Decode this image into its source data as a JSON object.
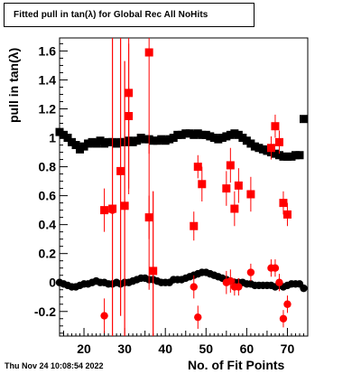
{
  "title": "Fitted pull in tan(λ) for Global Rec All NoHits",
  "footer": "Thu Nov 24 10:08:54 2022",
  "chart_data": {
    "type": "scatter",
    "title": "Fitted pull in tan(λ) for Global Rec All NoHits",
    "xlabel": "No. of Fit Points",
    "ylabel": "pull in tan(λ)",
    "xlim": [
      14,
      75
    ],
    "ylim": [
      -0.37,
      1.69
    ],
    "xticks": [
      20,
      30,
      40,
      50,
      60,
      70
    ],
    "yticks": [
      -0.2,
      0,
      0.2,
      0.4,
      0.6,
      0.8,
      1,
      1.2,
      1.4,
      1.6
    ],
    "ytick_labels": [
      "-0.2",
      "0",
      "0.2",
      "0.4",
      "0.6",
      "0.8",
      "1",
      "1.2",
      "1.4",
      "1.6"
    ],
    "series": [
      {
        "marker": "square",
        "color": "#000000",
        "points": [
          [
            14,
            1.04
          ],
          [
            15,
            1.02
          ],
          [
            16,
            1.0
          ],
          [
            17,
            0.97
          ],
          [
            18,
            0.95
          ],
          [
            19,
            0.92
          ],
          [
            20,
            0.94
          ],
          [
            21,
            0.96
          ],
          [
            22,
            0.97
          ],
          [
            23,
            0.96
          ],
          [
            24,
            0.98
          ],
          [
            25,
            0.96
          ],
          [
            26,
            0.97
          ],
          [
            27,
            0.97
          ],
          [
            28,
            0.96
          ],
          [
            29,
            0.97
          ],
          [
            30,
            0.97
          ],
          [
            31,
            0.98
          ],
          [
            32,
            0.97
          ],
          [
            33,
            0.98
          ],
          [
            34,
            1.0
          ],
          [
            35,
            0.99
          ],
          [
            36,
            0.99
          ],
          [
            37,
            0.98
          ],
          [
            38,
            0.98
          ],
          [
            39,
            0.99
          ],
          [
            40,
            0.98
          ],
          [
            41,
            0.99
          ],
          [
            42,
            1.0
          ],
          [
            43,
            1.02
          ],
          [
            44,
            1.02
          ],
          [
            45,
            1.03
          ],
          [
            46,
            1.03
          ],
          [
            47,
            1.02
          ],
          [
            48,
            1.03
          ],
          [
            49,
            1.02
          ],
          [
            50,
            1.02
          ],
          [
            51,
            1.01
          ],
          [
            52,
            1.0
          ],
          [
            53,
            0.99
          ],
          [
            54,
            1.0
          ],
          [
            55,
            1.01
          ],
          [
            56,
            1.02
          ],
          [
            57,
            1.03
          ],
          [
            58,
            1.02
          ],
          [
            59,
            1.0
          ],
          [
            60,
            0.98
          ],
          [
            61,
            0.96
          ],
          [
            62,
            0.94
          ],
          [
            63,
            0.93
          ],
          [
            64,
            0.92
          ],
          [
            65,
            0.91
          ],
          [
            66,
            0.9
          ],
          [
            67,
            0.89
          ],
          [
            68,
            0.88
          ],
          [
            69,
            0.87
          ],
          [
            70,
            0.87
          ],
          [
            71,
            0.87
          ],
          [
            72,
            0.88
          ],
          [
            73,
            0.88
          ],
          [
            74,
            1.13
          ]
        ]
      },
      {
        "marker": "circle",
        "color": "#000000",
        "points": [
          [
            14,
            0.0
          ],
          [
            15,
            -0.01
          ],
          [
            16,
            -0.02
          ],
          [
            17,
            -0.03
          ],
          [
            18,
            -0.03
          ],
          [
            19,
            -0.02
          ],
          [
            20,
            -0.01
          ],
          [
            21,
            -0.01
          ],
          [
            22,
            0.0
          ],
          [
            23,
            0.01
          ],
          [
            24,
            0.0
          ],
          [
            25,
            0.0
          ],
          [
            26,
            -0.01
          ],
          [
            27,
            -0.01
          ],
          [
            28,
            0.0
          ],
          [
            29,
            -0.01
          ],
          [
            30,
            0.0
          ],
          [
            31,
            0.0
          ],
          [
            32,
            0.01
          ],
          [
            33,
            0.02
          ],
          [
            34,
            0.03
          ],
          [
            35,
            0.03
          ],
          [
            36,
            0.02
          ],
          [
            37,
            0.02
          ],
          [
            38,
            0.01
          ],
          [
            39,
            0.0
          ],
          [
            40,
            0.0
          ],
          [
            41,
            0.0
          ],
          [
            42,
            0.02
          ],
          [
            43,
            0.02
          ],
          [
            44,
            0.02
          ],
          [
            45,
            0.03
          ],
          [
            46,
            0.04
          ],
          [
            47,
            0.05
          ],
          [
            48,
            0.06
          ],
          [
            49,
            0.07
          ],
          [
            50,
            0.07
          ],
          [
            51,
            0.06
          ],
          [
            52,
            0.05
          ],
          [
            53,
            0.04
          ],
          [
            54,
            0.03
          ],
          [
            55,
            0.02
          ],
          [
            56,
            0.01
          ],
          [
            57,
            0.0
          ],
          [
            58,
            0.0
          ],
          [
            59,
            0.0
          ],
          [
            60,
            -0.01
          ],
          [
            61,
            -0.01
          ],
          [
            62,
            -0.02
          ],
          [
            63,
            -0.02
          ],
          [
            64,
            -0.02
          ],
          [
            65,
            -0.02
          ],
          [
            66,
            -0.02
          ],
          [
            67,
            -0.03
          ],
          [
            68,
            -0.02
          ],
          [
            69,
            -0.03
          ],
          [
            70,
            -0.02
          ],
          [
            71,
            -0.01
          ],
          [
            72,
            -0.01
          ],
          [
            73,
            -0.01
          ],
          [
            74,
            -0.04
          ]
        ]
      },
      {
        "marker": "square",
        "color": "#ff0000",
        "points": [
          [
            25,
            0.5,
            0.15
          ],
          [
            27,
            0.51,
            1.2
          ],
          [
            29,
            0.77,
            1.0
          ],
          [
            30,
            0.53,
            1.0
          ],
          [
            31,
            1.31,
            0.7
          ],
          [
            31,
            1.15,
            0.2
          ],
          [
            36,
            1.59,
            0.7
          ],
          [
            36,
            0.45,
            0.15
          ],
          [
            37,
            0.08,
            0.55
          ],
          [
            47,
            0.39,
            0.1
          ],
          [
            48,
            0.8,
            0.08
          ],
          [
            49,
            0.68,
            0.12
          ],
          [
            55,
            0.65,
            0.12
          ],
          [
            56,
            0.81,
            0.12
          ],
          [
            57,
            0.51,
            0.12
          ],
          [
            58,
            0.67,
            0.12
          ],
          [
            61,
            0.61,
            0.12
          ],
          [
            66,
            0.93,
            0.08
          ],
          [
            67,
            1.08,
            0.08
          ],
          [
            68,
            0.97,
            0.08
          ],
          [
            69,
            0.55,
            0.08
          ],
          [
            70,
            0.47,
            0.08
          ]
        ]
      },
      {
        "marker": "circle",
        "color": "#ff0000",
        "points": [
          [
            25,
            -0.23,
            0.12
          ],
          [
            27,
            0.5,
            1.2
          ],
          [
            29,
            0.77,
            1.0
          ],
          [
            30,
            0.53,
            1.0
          ],
          [
            31,
            1.15,
            0.5
          ],
          [
            36,
            0.45,
            0.5
          ],
          [
            37,
            0.08,
            0.55
          ],
          [
            47,
            -0.03,
            0.08
          ],
          [
            48,
            -0.24,
            0.08
          ],
          [
            55,
            0.0,
            0.08
          ],
          [
            56,
            0.01,
            0.08
          ],
          [
            57,
            -0.03,
            0.06
          ],
          [
            58,
            -0.03,
            0.06
          ],
          [
            61,
            0.07,
            0.06
          ],
          [
            66,
            0.1,
            0.06
          ],
          [
            67,
            0.1,
            0.06
          ],
          [
            68,
            0.0,
            0.06
          ],
          [
            69,
            -0.25,
            0.06
          ],
          [
            70,
            -0.15,
            0.06
          ]
        ]
      }
    ]
  }
}
